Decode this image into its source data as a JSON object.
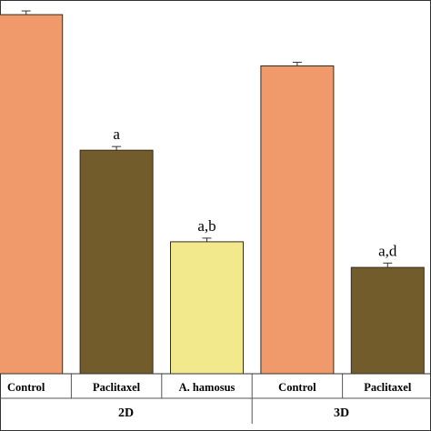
{
  "chart_data": {
    "type": "bar",
    "title": "",
    "xlabel": "",
    "ylabel": "",
    "ylim": [
      0,
      100
    ],
    "groups": [
      {
        "name": "2D",
        "bars": [
          {
            "category": "Control",
            "value": 98,
            "error": 1.0,
            "annotation": "",
            "color": "#F0996A"
          },
          {
            "category": "Paclitaxel",
            "value": 61,
            "error": 1.0,
            "annotation": "a",
            "color": "#735C2B"
          },
          {
            "category": "A. hamosus",
            "value": 36,
            "error": 1.0,
            "annotation": "a,b",
            "color": "#F2E88C"
          }
        ]
      },
      {
        "name": "3D",
        "bars": [
          {
            "category": "Control",
            "value": 84,
            "error": 1.0,
            "annotation": "",
            "color": "#F0996A"
          },
          {
            "category": "Paclitaxel",
            "value": 29,
            "error": 1.2,
            "annotation": "a,d",
            "color": "#735C2B"
          }
        ]
      }
    ],
    "grid": false,
    "legend": "none"
  }
}
